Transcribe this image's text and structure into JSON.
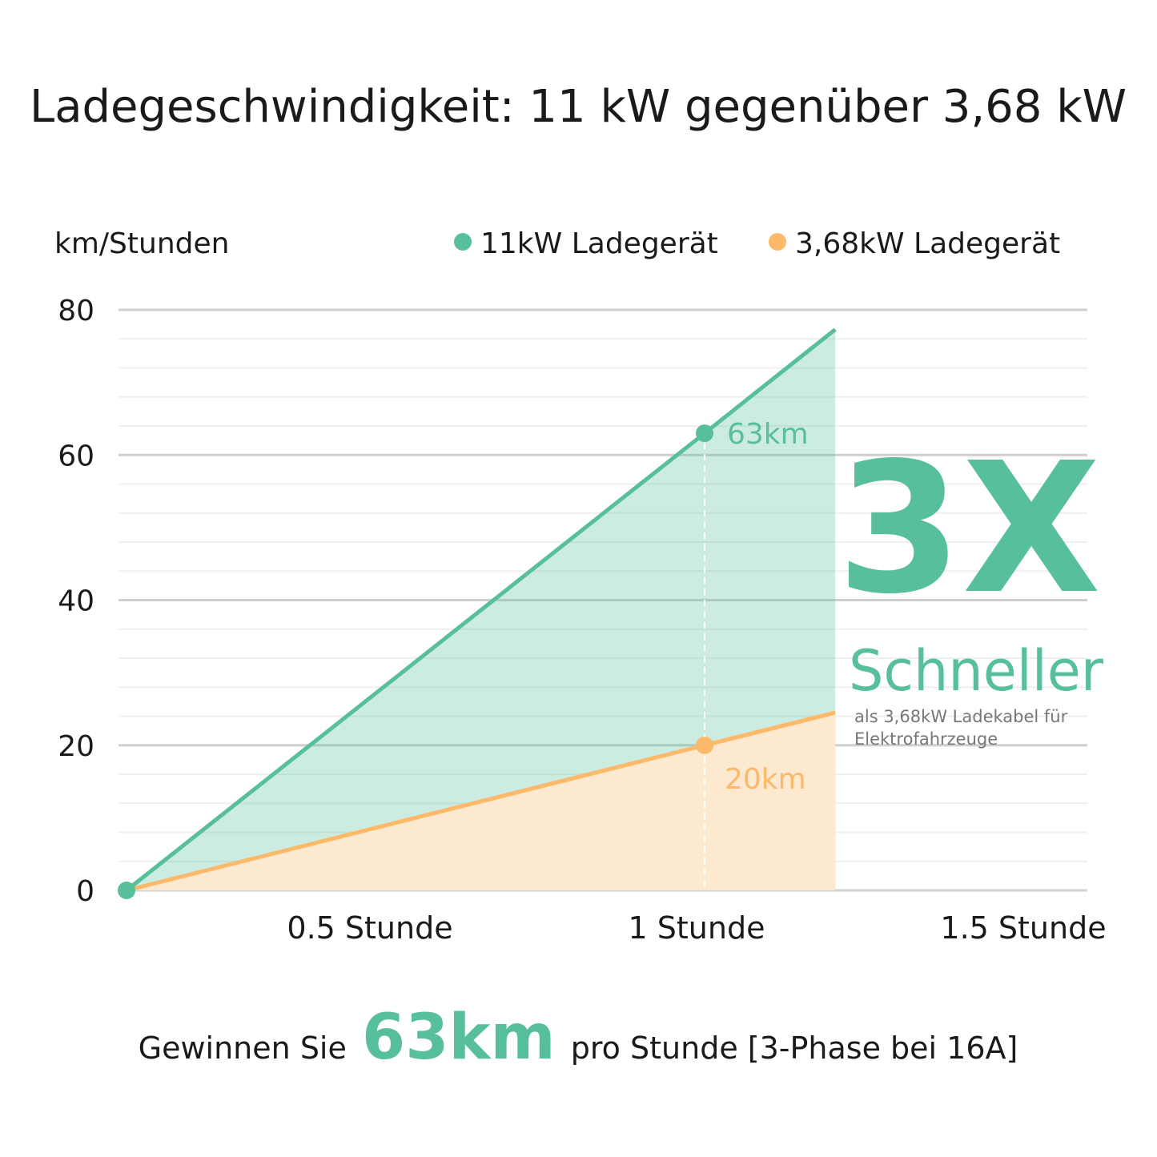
{
  "chart_data": {
    "type": "area",
    "title": "Ladegeschwindigkeit: 11 kW gegenüber 3,68 kW",
    "ylabel": "km/Stunden",
    "xlabel": "",
    "ylim": [
      0,
      80
    ],
    "yticks": [
      "0",
      "20",
      "40",
      "60",
      "80"
    ],
    "ytick_values": [
      0,
      20,
      40,
      60,
      80
    ],
    "xticks": [
      "0.5 Stunde",
      "1 Stunde",
      "1.5 Stunde"
    ],
    "xtick_values": [
      0.5,
      1,
      1.5
    ],
    "grid": true,
    "legend_position": "top-right",
    "series": [
      {
        "name": "11kW Ladegerät",
        "color": "#58bf9c",
        "x": [
          0,
          1,
          1.226
        ],
        "y": [
          0,
          63,
          77.3
        ],
        "marked_points": [
          0,
          1
        ],
        "point_label": "63km"
      },
      {
        "name": "3,68kW Ladegerät",
        "color": "#fcb96a",
        "x": [
          0,
          1,
          1.226
        ],
        "y": [
          0,
          20,
          24.5
        ],
        "marked_points": [
          1
        ],
        "point_label": "20km"
      }
    ],
    "annotation": {
      "big": "3X",
      "sub": "Schneller",
      "note_line1": "als 3,68kW Ladekabel für",
      "note_line2": "Elektrofahrzeuge"
    },
    "footer": {
      "prefix": "Gewinnen Sie",
      "highlight": "63km",
      "suffix": "pro Stunde [3-Phase bei 16A]"
    }
  }
}
